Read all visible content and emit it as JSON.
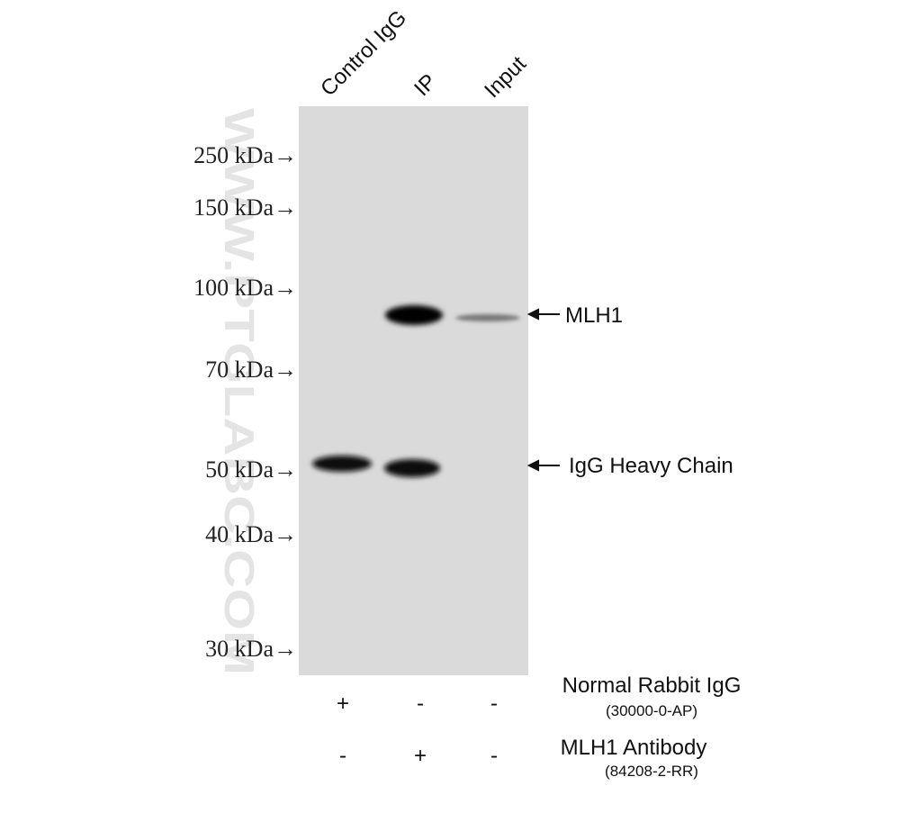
{
  "lanes": [
    "Control IgG",
    "IP",
    "Input"
  ],
  "markers": [
    "250 kDa→",
    "150 kDa→",
    "100 kDa→",
    "70 kDa→",
    "50 kDa→",
    "40 kDa→",
    "30 kDa→"
  ],
  "bands": [
    "MLH1",
    "IgG Heavy Chain"
  ],
  "watermark": "WWW.PTGLABC.COM",
  "treatments": [
    {
      "name": "Normal Rabbit IgG",
      "catalog": "(30000-0-AP)",
      "signs": [
        "+",
        "-",
        "-"
      ]
    },
    {
      "name": "MLH1 Antibody",
      "catalog": "(84208-2-RR)",
      "signs": [
        "-",
        "+",
        "-"
      ]
    }
  ]
}
